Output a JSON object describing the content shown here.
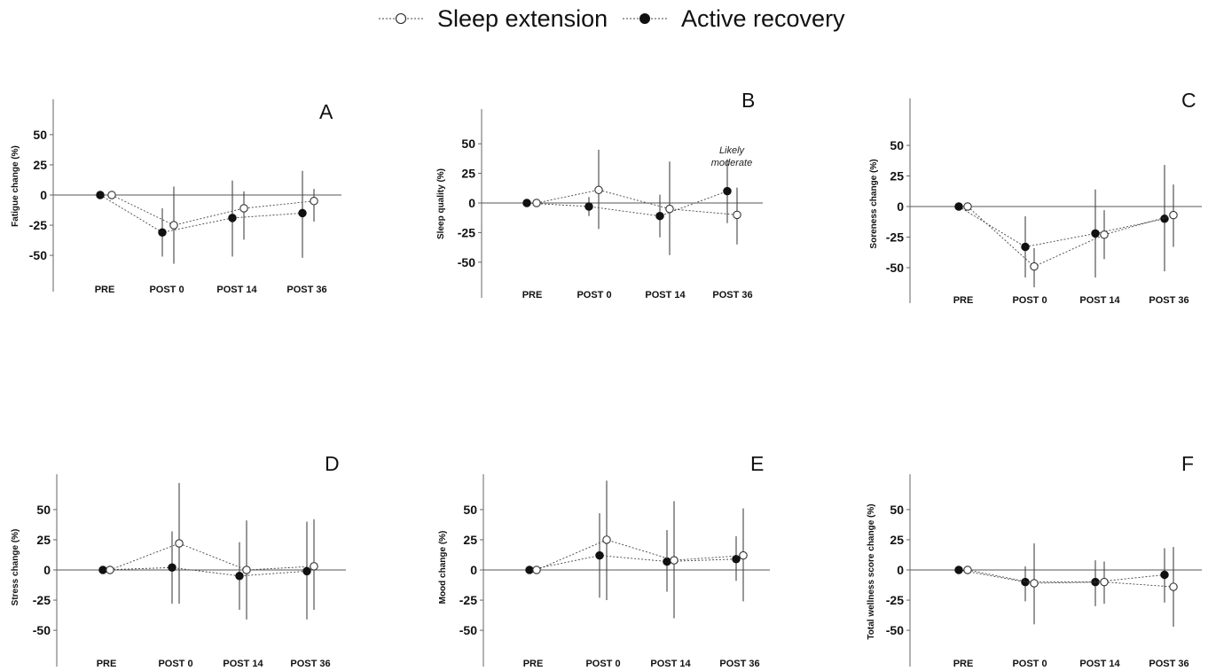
{
  "legend": {
    "series": [
      {
        "name": "Sleep extension",
        "marker": "open-circle"
      },
      {
        "name": "Active recovery",
        "marker": "filled-circle"
      }
    ],
    "placement": "top-center"
  },
  "chart_data": [
    {
      "type": "line",
      "panel": "A",
      "xlabel": "",
      "ylabel": "Fatigue change (%)",
      "categories": [
        "PRE",
        "POST 0",
        "POST 14",
        "POST 36"
      ],
      "ylim": [
        -80,
        80
      ],
      "yticks": [
        -50,
        -25,
        0,
        25,
        50
      ],
      "series": [
        {
          "name": "Sleep extension",
          "values": [
            0,
            -25,
            -11,
            -5
          ],
          "err_low": [
            0,
            -57,
            -37,
            -22
          ],
          "err_high": [
            0,
            7,
            3,
            5
          ]
        },
        {
          "name": "Active recovery",
          "values": [
            0,
            -31,
            -19,
            -15
          ],
          "err_low": [
            0,
            -51,
            -51,
            -52
          ],
          "err_high": [
            0,
            -11,
            12,
            20
          ]
        }
      ],
      "annotation": ""
    },
    {
      "type": "line",
      "panel": "B",
      "xlabel": "",
      "ylabel": "Sleep quality (%)",
      "categories": [
        "PRE",
        "POST 0",
        "POST 14",
        "POST 36"
      ],
      "ylim": [
        -80,
        80
      ],
      "yticks": [
        -50,
        -25,
        0,
        25,
        50
      ],
      "series": [
        {
          "name": "Sleep extension",
          "values": [
            0,
            11,
            -5,
            -10
          ],
          "err_low": [
            0,
            -22,
            -44,
            -35
          ],
          "err_high": [
            0,
            45,
            35,
            13
          ]
        },
        {
          "name": "Active recovery",
          "values": [
            0,
            -3,
            -11,
            10
          ],
          "err_low": [
            0,
            -11,
            -29,
            -17
          ],
          "err_high": [
            0,
            5,
            7,
            37
          ]
        }
      ],
      "annotation": "Likely moderate",
      "annotation_lines": [
        "Likely",
        "moderate"
      ]
    },
    {
      "type": "line",
      "panel": "C",
      "xlabel": "",
      "ylabel": "Soreness change (%)",
      "categories": [
        "PRE",
        "POST 0",
        "POST 14",
        "POST 36"
      ],
      "ylim": [
        -80,
        80
      ],
      "yticks": [
        -50,
        -25,
        0,
        25,
        50
      ],
      "series": [
        {
          "name": "Sleep extension",
          "values": [
            0,
            -49,
            -23,
            -7
          ],
          "err_low": [
            0,
            -66,
            -43,
            -33
          ],
          "err_high": [
            0,
            -34,
            -3,
            18
          ]
        },
        {
          "name": "Active recovery",
          "values": [
            0,
            -33,
            -22,
            -10
          ],
          "err_low": [
            0,
            -58,
            -58,
            -53
          ],
          "err_high": [
            0,
            -8,
            14,
            34
          ]
        }
      ],
      "annotation": ""
    },
    {
      "type": "line",
      "panel": "D",
      "xlabel": "",
      "ylabel": "Stress change  (%)",
      "categories": [
        "PRE",
        "POST 0",
        "POST 14",
        "POST 36"
      ],
      "ylim": [
        -80,
        80
      ],
      "yticks": [
        -50,
        -25,
        0,
        25,
        50
      ],
      "series": [
        {
          "name": "Sleep extension",
          "values": [
            0,
            22,
            0,
            3
          ],
          "err_low": [
            0,
            -28,
            -41,
            -33
          ],
          "err_high": [
            0,
            72,
            41,
            42
          ]
        },
        {
          "name": "Active recovery",
          "values": [
            0,
            2,
            -5,
            -1
          ],
          "err_low": [
            0,
            -28,
            -33,
            -41
          ],
          "err_high": [
            0,
            32,
            23,
            40
          ]
        }
      ],
      "annotation": ""
    },
    {
      "type": "line",
      "panel": "E",
      "xlabel": "",
      "ylabel": "Mood change (%)",
      "categories": [
        "PRE",
        "POST 0",
        "POST 14",
        "POST 36"
      ],
      "ylim": [
        -80,
        80
      ],
      "yticks": [
        -50,
        -25,
        0,
        25,
        50
      ],
      "series": [
        {
          "name": "Sleep extension",
          "values": [
            0,
            25,
            8,
            12
          ],
          "err_low": [
            0,
            -25,
            -40,
            -26
          ],
          "err_high": [
            0,
            74,
            57,
            51
          ]
        },
        {
          "name": "Active recovery",
          "values": [
            0,
            12,
            7,
            9
          ],
          "err_low": [
            0,
            -23,
            -18,
            -9
          ],
          "err_high": [
            0,
            47,
            33,
            28
          ]
        }
      ],
      "annotation": ""
    },
    {
      "type": "line",
      "panel": "F",
      "xlabel": "",
      "ylabel": "Total wellness score change (%)",
      "categories": [
        "PRE",
        "POST 0",
        "POST 14",
        "POST 36"
      ],
      "ylim": [
        -80,
        80
      ],
      "yticks": [
        -50,
        -25,
        0,
        25,
        50
      ],
      "series": [
        {
          "name": "Sleep extension",
          "values": [
            0,
            -11,
            -10,
            -14
          ],
          "err_low": [
            0,
            -45,
            -28,
            -47
          ],
          "err_high": [
            0,
            22,
            7,
            19
          ]
        },
        {
          "name": "Active recovery",
          "values": [
            0,
            -10,
            -10,
            -4
          ],
          "err_low": [
            0,
            -26,
            -30,
            -27
          ],
          "err_high": [
            0,
            3,
            8,
            18
          ]
        }
      ],
      "annotation": ""
    }
  ]
}
